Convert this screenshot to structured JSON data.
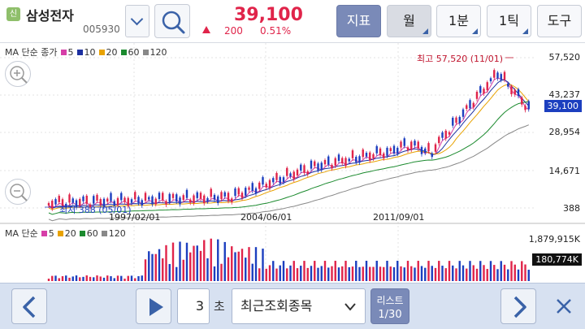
{
  "stock": {
    "badge": "신",
    "name": "삼성전자",
    "code": "005930",
    "price": "39,100",
    "change": "200",
    "change_pct": "0.51%"
  },
  "toolbar": {
    "indicator": "지표",
    "period_month": "월",
    "period_min": "1분",
    "period_tick": "1틱",
    "tools": "도구"
  },
  "legend_top": {
    "label": "MA 단순 종가",
    "items": [
      {
        "v": "5",
        "color": "#d63ea8"
      },
      {
        "v": "10",
        "color": "#1c2fa0"
      },
      {
        "v": "20",
        "color": "#e8a200"
      },
      {
        "v": "60",
        "color": "#1b8a2e"
      },
      {
        "v": "120",
        "color": "#888888"
      }
    ]
  },
  "legend_bottom": {
    "label": "MA 단순",
    "items": [
      {
        "v": "5",
        "color": "#d63ea8"
      },
      {
        "v": "20",
        "color": "#e8a200"
      },
      {
        "v": "60",
        "color": "#1b8a2e"
      },
      {
        "v": "120",
        "color": "#888888"
      }
    ]
  },
  "annotations": {
    "high": "최고 57,520 (11/01)",
    "low": "최저 388 (05/01)"
  },
  "chart_data": [
    {
      "type": "line",
      "title": "",
      "y_ticks": [
        "57,520",
        "43,237",
        "28,954",
        "14,671",
        "388"
      ],
      "current_value": "39,100",
      "x_ticks": [
        "1997/02/01",
        "2004/06/01",
        "2011/09/01"
      ],
      "high": 57520,
      "low": 388,
      "series": [
        {
          "name": "5"
        },
        {
          "name": "10"
        },
        {
          "name": "20"
        },
        {
          "name": "60"
        },
        {
          "name": "120"
        }
      ]
    },
    {
      "type": "bar",
      "title": "",
      "y_ticks": [
        "1,879,915K"
      ],
      "current_value": "180,774K"
    }
  ],
  "bottom": {
    "seconds": "3",
    "sec_unit": "초",
    "select_value": "최근조회종목",
    "list_label": "리스트",
    "list_page": "1/30"
  },
  "colors": {
    "up": "#e0244a",
    "down": "#1c3fbf",
    "accent": "#7a8ab8"
  }
}
